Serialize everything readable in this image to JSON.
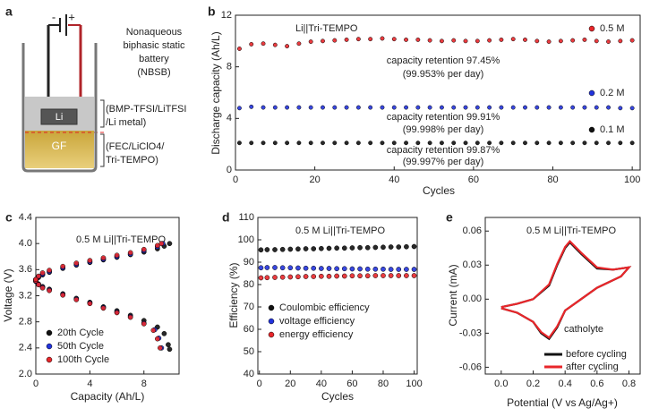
{
  "diagram": {
    "label": "a",
    "minus": "-",
    "plus": "+",
    "li": "Li",
    "gf": "GF",
    "texts": [
      "Nonaqueous",
      "biphasic static",
      "battery",
      "(NBSB)",
      "(BMP-TFSI/LiTFSI",
      "/Li metal)",
      "(FEC/LiClO4/",
      "Tri-TEMPO)"
    ]
  },
  "chart_data": [
    {
      "type": "scatter",
      "label": "b",
      "xlabel": "Cycles",
      "ylabel": "Discharge capacity (Ah/L)",
      "xlim": [
        0,
        102
      ],
      "ylim": [
        0,
        12
      ],
      "xticks": [
        0,
        20,
        40,
        60,
        80,
        100
      ],
      "yticks": [
        0,
        4,
        8,
        12
      ],
      "annotations": [
        "Li||Tri-TEMPO",
        "capacity retention 97.45%",
        "(99.953% per day)",
        "capacity retention 99.91%",
        "(99.998% per day)",
        "capacity retention 99.87%",
        "(99.997% per day)"
      ],
      "x": [
        1,
        4,
        7,
        10,
        13,
        16,
        19,
        22,
        25,
        28,
        31,
        34,
        37,
        40,
        43,
        46,
        49,
        52,
        55,
        58,
        61,
        64,
        67,
        70,
        73,
        76,
        79,
        82,
        85,
        88,
        91,
        94,
        97,
        100
      ],
      "series": [
        {
          "name": "0.5 M",
          "color": "#e8262a",
          "values": [
            9.4,
            9.75,
            9.8,
            9.7,
            9.6,
            9.8,
            9.95,
            10.0,
            10.05,
            10.1,
            10.15,
            10.15,
            10.2,
            10.15,
            10.1,
            10.1,
            10.05,
            10.0,
            10.05,
            10.0,
            10.0,
            10.05,
            10.1,
            10.15,
            10.1,
            10.0,
            9.95,
            10.0,
            10.05,
            10.1,
            10.0,
            9.95,
            10.0,
            10.05
          ]
        },
        {
          "name": "0.2 M",
          "color": "#2233dd",
          "values": [
            4.8,
            4.9,
            4.85,
            4.85,
            4.85,
            4.85,
            4.85,
            4.85,
            4.85,
            4.85,
            4.85,
            4.85,
            4.85,
            4.85,
            4.85,
            4.85,
            4.85,
            4.85,
            4.85,
            4.85,
            4.85,
            4.85,
            4.85,
            4.85,
            4.85,
            4.85,
            4.85,
            4.85,
            4.85,
            4.85,
            4.85,
            4.85,
            4.8,
            4.8
          ]
        },
        {
          "name": "0.1 M",
          "color": "#111111",
          "values": [
            2.1,
            2.1,
            2.1,
            2.1,
            2.1,
            2.1,
            2.1,
            2.1,
            2.1,
            2.1,
            2.1,
            2.1,
            2.1,
            2.1,
            2.1,
            2.1,
            2.1,
            2.1,
            2.1,
            2.1,
            2.1,
            2.1,
            2.1,
            2.1,
            2.1,
            2.1,
            2.1,
            2.1,
            2.1,
            2.1,
            2.1,
            2.1,
            2.1,
            2.1
          ]
        }
      ]
    },
    {
      "type": "scatter",
      "label": "c",
      "xlabel": "Capacity (Ah/L)",
      "ylabel": "Voltage (V)",
      "xlim": [
        0,
        10.6
      ],
      "ylim": [
        2.0,
        4.4
      ],
      "xticks": [
        0,
        4,
        8
      ],
      "yticks": [
        {
          "value": 2.0,
          "label": "2.0"
        },
        2.4,
        2.8,
        3.2,
        3.6,
        {
          "value": 4.0,
          "label": "4.0"
        },
        4.4
      ],
      "annotations": [
        "0.5 M Li||Tri-TEMPO"
      ],
      "series": [
        {
          "name": "20th Cycle",
          "color": "#111111",
          "x": [
            0,
            0.2,
            0.5,
            1,
            2,
            3,
            4,
            5,
            6,
            7,
            8,
            9,
            9.5,
            9.9,
            0,
            0.2,
            0.5,
            1,
            2,
            3,
            4,
            5,
            6,
            7,
            8,
            9,
            9.5,
            9.8,
            9.9
          ],
          "values": [
            3.42,
            3.48,
            3.52,
            3.56,
            3.62,
            3.67,
            3.71,
            3.75,
            3.79,
            3.83,
            3.87,
            3.92,
            3.96,
            4.0,
            3.45,
            3.38,
            3.34,
            3.3,
            3.23,
            3.16,
            3.1,
            3.03,
            2.97,
            2.9,
            2.82,
            2.72,
            2.62,
            2.45,
            2.38
          ]
        },
        {
          "name": "50th Cycle",
          "color": "#2233dd",
          "x": [
            0,
            0.2,
            0.5,
            1,
            2,
            3,
            4,
            5,
            6,
            7,
            8,
            9,
            9.4,
            0,
            0.2,
            0.5,
            1,
            2,
            3,
            4,
            5,
            6,
            7,
            8,
            8.8,
            9.1,
            9.3
          ],
          "values": [
            3.42,
            3.49,
            3.53,
            3.57,
            3.63,
            3.68,
            3.72,
            3.76,
            3.8,
            3.84,
            3.89,
            3.95,
            4.0,
            3.45,
            3.37,
            3.33,
            3.29,
            3.22,
            3.15,
            3.09,
            3.02,
            2.95,
            2.88,
            2.78,
            2.68,
            2.55,
            2.4
          ]
        },
        {
          "name": "100th Cycle",
          "color": "#e8262a",
          "x": [
            0,
            0.2,
            0.5,
            1,
            2,
            3,
            4,
            5,
            6,
            7,
            8,
            9,
            9.3,
            0,
            0.2,
            0.5,
            1,
            2,
            3,
            4,
            5,
            6,
            7,
            8,
            8.7,
            9,
            9.2
          ],
          "values": [
            3.43,
            3.5,
            3.55,
            3.59,
            3.65,
            3.7,
            3.74,
            3.78,
            3.82,
            3.86,
            3.91,
            3.97,
            4.0,
            3.45,
            3.37,
            3.32,
            3.28,
            3.21,
            3.14,
            3.08,
            3.01,
            2.94,
            2.87,
            2.77,
            2.67,
            2.54,
            2.4
          ]
        }
      ]
    },
    {
      "type": "scatter",
      "label": "d",
      "xlabel": "Cycles",
      "ylabel": "Efficiency (%)",
      "xlim": [
        -1,
        102
      ],
      "ylim": [
        40,
        110
      ],
      "xticks": [
        0,
        20,
        40,
        60,
        80,
        100
      ],
      "yticks": [
        40,
        50,
        60,
        70,
        80,
        90,
        100,
        110
      ],
      "annotations": [
        "0.5 M Li||Tri-TEMPO"
      ],
      "x": [
        1,
        5,
        10,
        15,
        20,
        25,
        30,
        35,
        40,
        45,
        50,
        55,
        60,
        65,
        70,
        75,
        80,
        85,
        90,
        95,
        100
      ],
      "series": [
        {
          "name": "Coulombic efficiency",
          "color": "#111111",
          "values": [
            95.5,
            95.6,
            95.6,
            95.7,
            95.8,
            95.9,
            96.0,
            96.0,
            96.1,
            96.2,
            96.3,
            96.3,
            96.4,
            96.5,
            96.5,
            96.6,
            96.7,
            96.8,
            96.8,
            96.9,
            97.0
          ]
        },
        {
          "name": "voltage efficiency",
          "color": "#2233dd",
          "values": [
            87.5,
            87.6,
            87.6,
            87.5,
            87.5,
            87.4,
            87.3,
            87.3,
            87.2,
            87.2,
            87.1,
            87.1,
            87.0,
            87.0,
            86.9,
            86.9,
            86.9,
            86.8,
            86.8,
            86.8,
            86.8
          ]
        },
        {
          "name": "energy efficiency",
          "color": "#e8262a",
          "values": [
            83.0,
            83.1,
            83.2,
            83.3,
            83.4,
            83.5,
            83.6,
            83.6,
            83.7,
            83.7,
            83.8,
            83.8,
            83.9,
            83.9,
            83.9,
            84.0,
            84.0,
            84.0,
            84.0,
            84.0,
            84.0
          ]
        }
      ]
    },
    {
      "type": "line",
      "label": "e",
      "xlabel": "Potential (V vs Ag/Ag+)",
      "ylabel": "Current (mA)",
      "xlim": [
        -0.1,
        0.87
      ],
      "ylim": [
        -0.066,
        0.072
      ],
      "xticks": [
        {
          "value": 0.0,
          "label": "0.0"
        },
        0.2,
        0.4,
        0.6,
        0.8
      ],
      "yticks": [
        -0.06,
        -0.03,
        {
          "value": 0.0,
          "label": "0.00"
        },
        0.03,
        0.06
      ],
      "annotations": [
        "0.5 M Li||Tri-TEMPO",
        "catholyte"
      ],
      "series": [
        {
          "name": "before cycling",
          "color": "#111111",
          "x": [
            0,
            0.1,
            0.2,
            0.3,
            0.35,
            0.4,
            0.43,
            0.5,
            0.6,
            0.7,
            0.8,
            0.75,
            0.6,
            0.5,
            0.4,
            0.35,
            0.3,
            0.25,
            0.2,
            0.1,
            0
          ],
          "values": [
            -0.007,
            -0.004,
            0.0,
            0.012,
            0.03,
            0.045,
            0.05,
            0.04,
            0.027,
            0.026,
            0.028,
            0.02,
            0.01,
            0.0,
            -0.01,
            -0.025,
            -0.035,
            -0.03,
            -0.02,
            -0.012,
            -0.008
          ]
        },
        {
          "name": "after cycling",
          "color": "#e8262a",
          "x": [
            0,
            0.1,
            0.2,
            0.3,
            0.35,
            0.4,
            0.43,
            0.5,
            0.6,
            0.7,
            0.8,
            0.75,
            0.6,
            0.5,
            0.4,
            0.35,
            0.3,
            0.25,
            0.2,
            0.1,
            0
          ],
          "values": [
            -0.007,
            -0.004,
            0.0,
            0.013,
            0.031,
            0.046,
            0.051,
            0.041,
            0.028,
            0.026,
            0.028,
            0.02,
            0.01,
            0.0,
            -0.01,
            -0.024,
            -0.034,
            -0.029,
            -0.02,
            -0.012,
            -0.008
          ]
        }
      ]
    }
  ]
}
